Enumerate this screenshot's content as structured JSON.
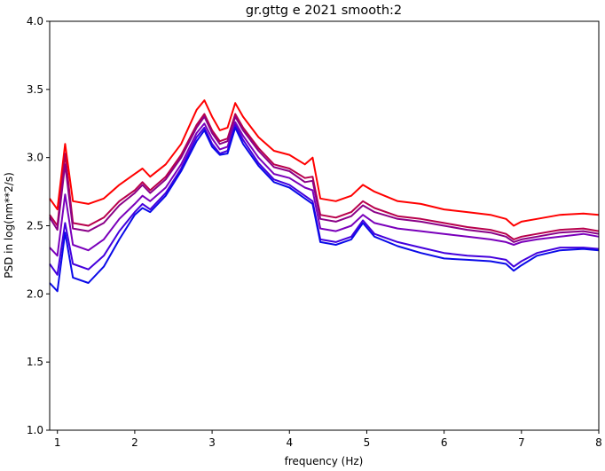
{
  "chart_data": {
    "type": "line",
    "title": "gr.gttg e 2021 smooth:2",
    "xlabel": "frequency (Hz)",
    "ylabel": "PSD in log(nm**2/s)",
    "xlim": [
      0.9,
      8.0
    ],
    "ylim": [
      1.0,
      4.0
    ],
    "x_ticks": [
      1,
      2,
      3,
      4,
      5,
      6,
      7,
      8
    ],
    "y_ticks": [
      1.0,
      1.5,
      2.0,
      2.5,
      3.0,
      3.5,
      4.0
    ],
    "x_tick_labels": [
      "1",
      "2",
      "3",
      "4",
      "5",
      "6",
      "7",
      "8"
    ],
    "y_tick_labels": [
      "1.0",
      "1.5",
      "2.0",
      "2.5",
      "3.0",
      "3.5",
      "4.0"
    ],
    "grid": false,
    "legend": false,
    "x": [
      0.9,
      1.0,
      1.1,
      1.2,
      1.4,
      1.6,
      1.8,
      2.0,
      2.1,
      2.2,
      2.4,
      2.6,
      2.8,
      2.9,
      3.0,
      3.1,
      3.2,
      3.3,
      3.4,
      3.6,
      3.8,
      4.0,
      4.2,
      4.3,
      4.4,
      4.6,
      4.8,
      4.95,
      5.1,
      5.4,
      5.7,
      6.0,
      6.3,
      6.6,
      6.8,
      6.9,
      7.0,
      7.2,
      7.5,
      7.8,
      8.0
    ],
    "series": [
      {
        "color": "#ff0000",
        "values": [
          2.7,
          2.62,
          3.1,
          2.68,
          2.66,
          2.7,
          2.8,
          2.88,
          2.92,
          2.86,
          2.95,
          3.1,
          3.35,
          3.42,
          3.3,
          3.2,
          3.22,
          3.4,
          3.3,
          3.15,
          3.05,
          3.02,
          2.95,
          3.0,
          2.7,
          2.68,
          2.72,
          2.8,
          2.75,
          2.68,
          2.66,
          2.62,
          2.6,
          2.58,
          2.55,
          2.5,
          2.53,
          2.55,
          2.58,
          2.59,
          2.58
        ]
      },
      {
        "color": "#b8004c",
        "values": [
          2.58,
          2.5,
          3.03,
          2.52,
          2.5,
          2.56,
          2.68,
          2.76,
          2.82,
          2.76,
          2.86,
          3.02,
          3.24,
          3.32,
          3.2,
          3.12,
          3.14,
          3.32,
          3.22,
          3.07,
          2.95,
          2.92,
          2.85,
          2.86,
          2.58,
          2.56,
          2.6,
          2.68,
          2.63,
          2.57,
          2.55,
          2.52,
          2.49,
          2.47,
          2.44,
          2.4,
          2.42,
          2.44,
          2.47,
          2.48,
          2.46
        ]
      },
      {
        "color": "#8a0088",
        "values": [
          2.56,
          2.47,
          2.95,
          2.48,
          2.46,
          2.52,
          2.65,
          2.74,
          2.8,
          2.74,
          2.84,
          3.0,
          3.22,
          3.3,
          3.18,
          3.1,
          3.12,
          3.3,
          3.2,
          3.05,
          2.93,
          2.9,
          2.82,
          2.83,
          2.55,
          2.53,
          2.57,
          2.65,
          2.6,
          2.55,
          2.53,
          2.5,
          2.47,
          2.45,
          2.42,
          2.38,
          2.4,
          2.42,
          2.45,
          2.46,
          2.44
        ]
      },
      {
        "color": "#7a00bb",
        "values": [
          2.34,
          2.28,
          2.73,
          2.36,
          2.32,
          2.4,
          2.55,
          2.66,
          2.72,
          2.68,
          2.78,
          2.95,
          3.18,
          3.25,
          3.14,
          3.06,
          3.08,
          3.26,
          3.16,
          3.0,
          2.88,
          2.85,
          2.78,
          2.76,
          2.48,
          2.46,
          2.5,
          2.58,
          2.52,
          2.48,
          2.46,
          2.44,
          2.42,
          2.4,
          2.38,
          2.36,
          2.38,
          2.4,
          2.42,
          2.44,
          2.42
        ]
      },
      {
        "color": "#4400dd",
        "values": [
          2.22,
          2.14,
          2.52,
          2.22,
          2.18,
          2.28,
          2.46,
          2.6,
          2.66,
          2.62,
          2.74,
          2.92,
          3.15,
          3.22,
          3.1,
          3.03,
          3.05,
          3.24,
          3.13,
          2.96,
          2.84,
          2.8,
          2.72,
          2.68,
          2.4,
          2.38,
          2.42,
          2.54,
          2.44,
          2.38,
          2.34,
          2.3,
          2.28,
          2.27,
          2.25,
          2.2,
          2.24,
          2.3,
          2.34,
          2.34,
          2.33
        ]
      },
      {
        "color": "#0a0ae8",
        "values": [
          2.08,
          2.02,
          2.45,
          2.12,
          2.08,
          2.2,
          2.4,
          2.58,
          2.63,
          2.6,
          2.72,
          2.9,
          3.12,
          3.2,
          3.08,
          3.02,
          3.03,
          3.22,
          3.1,
          2.94,
          2.82,
          2.78,
          2.7,
          2.66,
          2.38,
          2.36,
          2.4,
          2.52,
          2.42,
          2.35,
          2.3,
          2.26,
          2.25,
          2.24,
          2.22,
          2.17,
          2.21,
          2.28,
          2.32,
          2.33,
          2.32
        ]
      }
    ]
  }
}
